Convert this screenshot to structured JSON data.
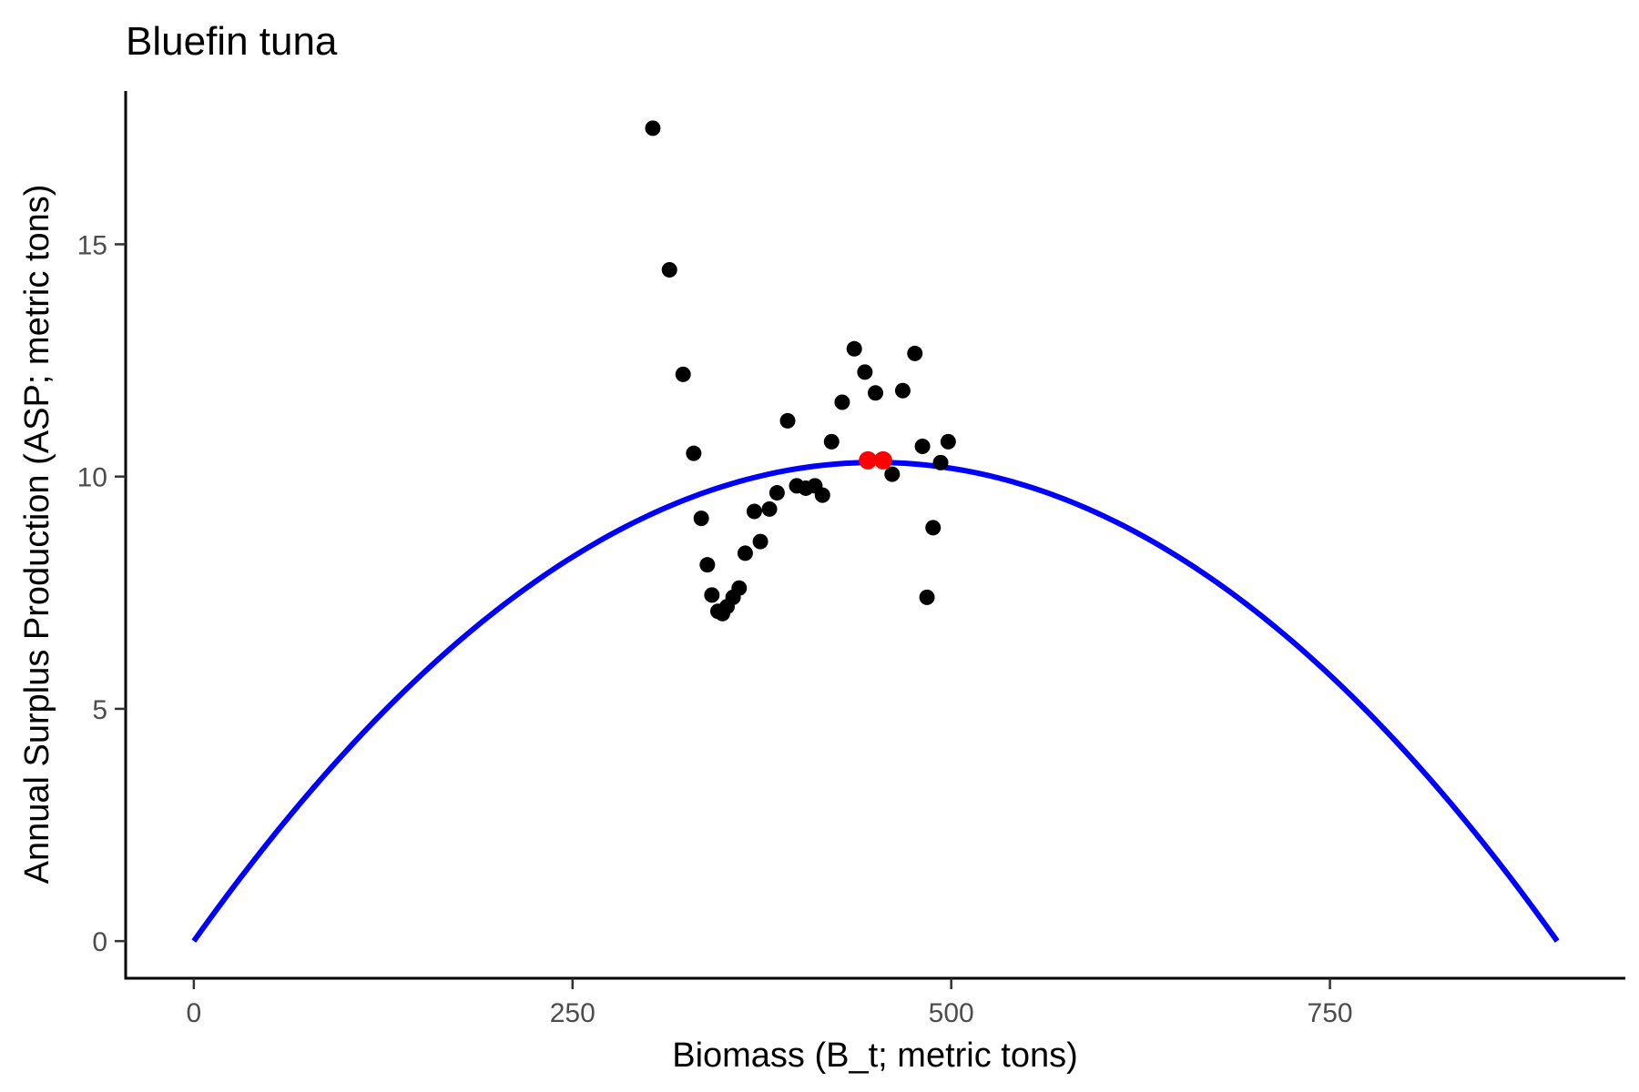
{
  "chart_data": {
    "type": "scatter",
    "title": "Bluefin tuna",
    "xlabel": "Biomass (B_t; metric tons)",
    "ylabel": "Annual Surplus Production (ASP; metric tons)",
    "xlim": [
      -45,
      945
    ],
    "ylim": [
      -0.8,
      18.3
    ],
    "x_ticks": [
      0,
      250,
      500,
      750
    ],
    "y_ticks": [
      0,
      5,
      10,
      15
    ],
    "grid": false,
    "legend": "none",
    "series": [
      {
        "type": "scatter",
        "color": "#000000",
        "points": [
          [
            303,
            17.5
          ],
          [
            314,
            14.45
          ],
          [
            323,
            12.2
          ],
          [
            330,
            10.5
          ],
          [
            335,
            9.1
          ],
          [
            339,
            8.1
          ],
          [
            342,
            7.45
          ],
          [
            346,
            7.1
          ],
          [
            349,
            7.05
          ],
          [
            352,
            7.2
          ],
          [
            356,
            7.4
          ],
          [
            360,
            7.6
          ],
          [
            364,
            8.35
          ],
          [
            370,
            9.25
          ],
          [
            374,
            8.6
          ],
          [
            380,
            9.3
          ],
          [
            385,
            9.65
          ],
          [
            392,
            11.2
          ],
          [
            398,
            9.8
          ],
          [
            404,
            9.75
          ],
          [
            410,
            9.8
          ],
          [
            415,
            9.6
          ],
          [
            421,
            10.75
          ],
          [
            428,
            11.6
          ],
          [
            436,
            12.75
          ],
          [
            443,
            12.25
          ],
          [
            450,
            11.8
          ],
          [
            461,
            10.05
          ],
          [
            468,
            11.85
          ],
          [
            476,
            12.65
          ],
          [
            481,
            10.65
          ],
          [
            484,
            7.4
          ],
          [
            488,
            8.9
          ],
          [
            493,
            10.3
          ],
          [
            498,
            10.75
          ]
        ]
      },
      {
        "type": "scatter",
        "color": "#ff0000",
        "points": [
          [
            445,
            10.35
          ],
          [
            455,
            10.35
          ]
        ]
      },
      {
        "type": "line",
        "color": "#0000ff",
        "curve": "parabola",
        "r": 0.0458,
        "K": 900,
        "x_range": [
          0,
          900
        ]
      }
    ]
  }
}
